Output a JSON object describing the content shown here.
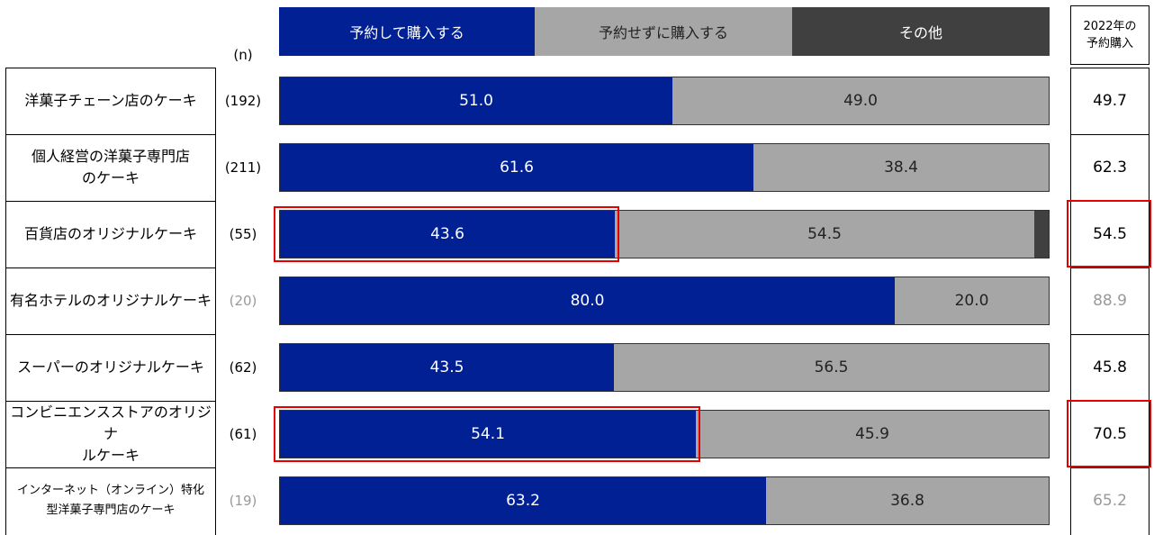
{
  "legend": [
    {
      "label": "予約して購入する",
      "color": "#002094"
    },
    {
      "label": "予約せずに購入する",
      "color": "#a6a6a6"
    },
    {
      "label": "その他",
      "color": "#404040"
    }
  ],
  "n_header": "(n)",
  "prev_header": {
    "line1": "2022年の",
    "line2": "予約購入"
  },
  "chart_data": {
    "type": "bar",
    "orientation": "horizontal",
    "stacked": true,
    "percent": true,
    "categories": [
      "洋菓子チェーン店のケーキ",
      "個人経営の洋菓子専門店のケーキ",
      "百貨店のオリジナルケーキ",
      "有名ホテルのオリジナルケーキ",
      "スーパーのオリジナルケーキ",
      "コンビニエンスストアのオリジナルケーキ",
      "インターネット（オンライン）特化型洋菓子専門店のケーキ"
    ],
    "category_lines": [
      [
        "洋菓子チェーン店のケーキ"
      ],
      [
        "個人経営の洋菓子専門店",
        "のケーキ"
      ],
      [
        "百貨店のオリジナルケーキ"
      ],
      [
        "有名ホテルのオリジナルケーキ"
      ],
      [
        "スーパーのオリジナルケーキ"
      ],
      [
        "コンビニエンスストアのオリジナ",
        "ルケーキ"
      ],
      [
        "インターネット（オンライン）特化",
        "型洋菓子専門店のケーキ"
      ]
    ],
    "n": [
      "(192)",
      "(211)",
      "(55)",
      "(20)",
      "(62)",
      "(61)",
      "(19)"
    ],
    "series": [
      {
        "name": "予約して購入する",
        "color": "#002094",
        "values": [
          51.0,
          61.6,
          43.6,
          80.0,
          43.5,
          54.1,
          63.2
        ],
        "labels": [
          "51.0",
          "61.6",
          "43.6",
          "80.0",
          "43.5",
          "54.1",
          "63.2"
        ]
      },
      {
        "name": "予約せずに購入する",
        "color": "#a6a6a6",
        "values": [
          49.0,
          38.4,
          54.5,
          20.0,
          56.5,
          45.9,
          36.8
        ],
        "labels": [
          "49.0",
          "38.4",
          "54.5",
          "20.0",
          "56.5",
          "45.9",
          "36.8"
        ]
      },
      {
        "name": "その他",
        "color": "#404040",
        "values": [
          0,
          0,
          1.9,
          0,
          0,
          0,
          0
        ],
        "labels": [
          "",
          "",
          "",
          "",
          "",
          "",
          ""
        ]
      }
    ],
    "prev_year": [
      "49.7",
      "62.3",
      "54.5",
      "88.9",
      "45.8",
      "70.5",
      "65.2"
    ],
    "dim_rows": [
      false,
      false,
      false,
      true,
      false,
      false,
      true
    ],
    "highlight_rows": [
      false,
      false,
      true,
      false,
      false,
      true,
      false
    ],
    "xlim": [
      0,
      100
    ]
  }
}
